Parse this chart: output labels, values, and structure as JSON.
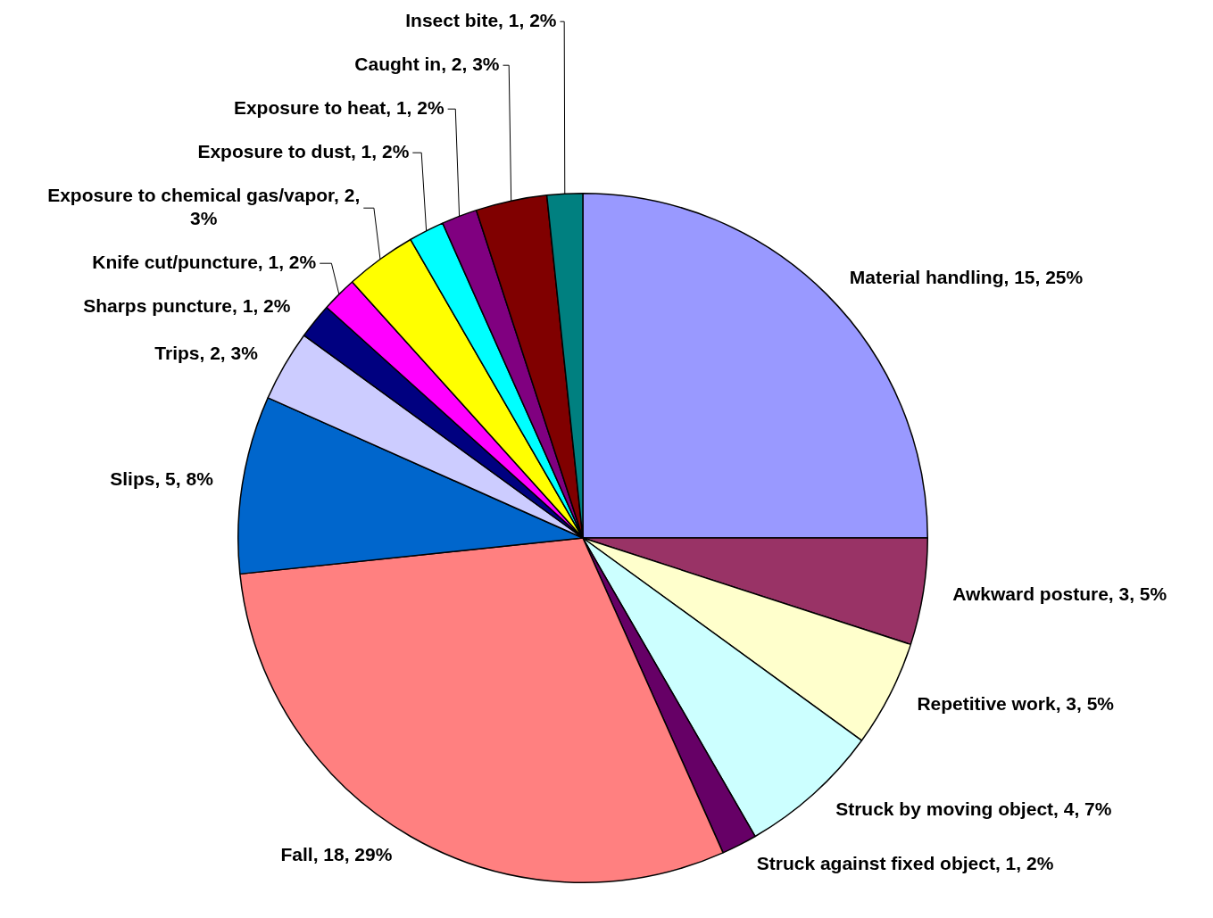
{
  "chart_data": {
    "type": "pie",
    "categories": [
      "Material handling",
      "Awkward posture",
      "Repetitive work",
      "Struck by moving object",
      "Struck against fixed object",
      "Fall",
      "Slips",
      "Trips",
      "Sharps puncture",
      "Knife cut/puncture",
      "Exposure to chemical gas/vapor",
      "Exposure to dust",
      "Exposure to heat",
      "Caught in",
      "Insect bite"
    ],
    "values": [
      15,
      3,
      3,
      4,
      1,
      18,
      5,
      2,
      1,
      1,
      2,
      1,
      1,
      2,
      1
    ],
    "value_labels": [
      "15, 25%",
      "3, 5%",
      "3, 5%",
      "4, 7%",
      "1, 2%",
      "18, 29%",
      "5, 8%",
      "2, 3%",
      "1, 2%",
      "1, 2%",
      "2, 3%",
      "1, 2%",
      "1, 2%",
      "2, 3%",
      "1, 2%"
    ],
    "colors": [
      "#9999ff",
      "#993366",
      "#ffffcc",
      "#ccffff",
      "#660066",
      "#ff8080",
      "#0066cc",
      "#ccccff",
      "#000080",
      "#ff00ff",
      "#ffff00",
      "#00ffff",
      "#800080",
      "#800000",
      "#008080"
    ],
    "legend": false
  }
}
